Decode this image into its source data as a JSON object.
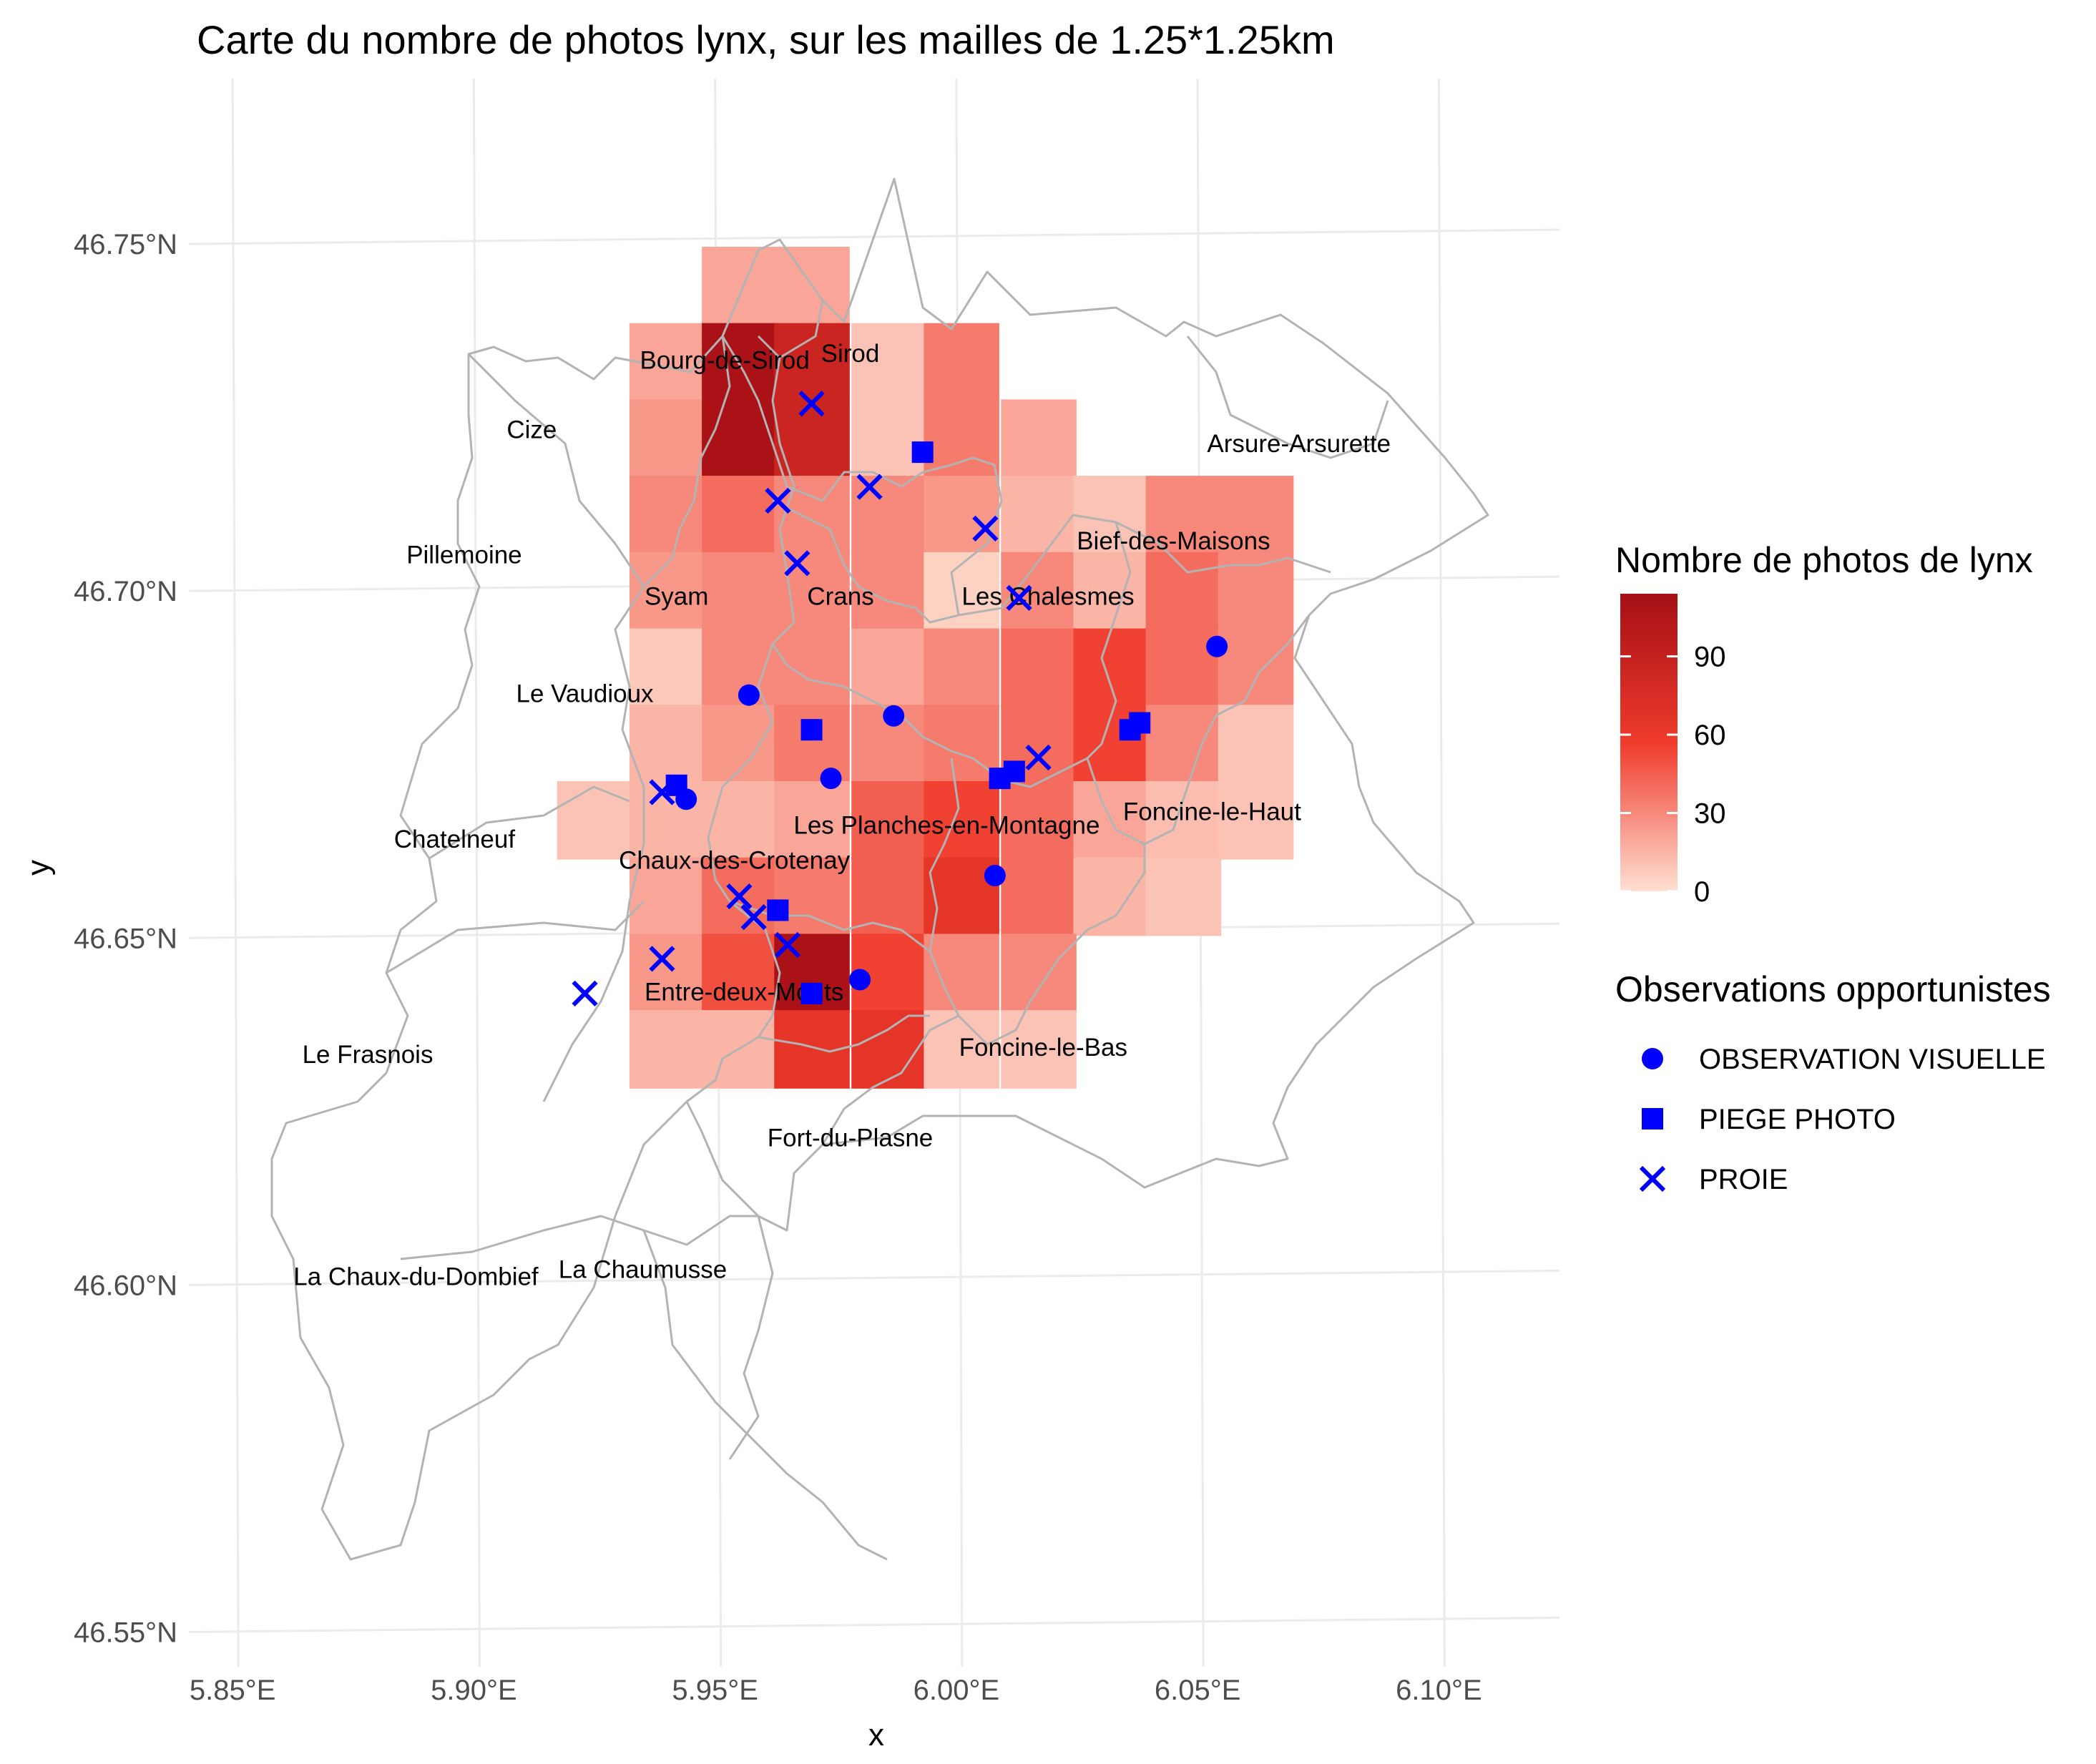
{
  "chart_data": {
    "type": "map",
    "title": "Carte du nombre de photos lynx, sur les mailles de 1.25*1.25km",
    "xlabel": "x",
    "ylabel": "y",
    "x_ticks": [
      "5.85°E",
      "5.90°E",
      "5.95°E",
      "6.00°E",
      "6.05°E",
      "6.10°E"
    ],
    "y_ticks": [
      "46.75°N",
      "46.70°N",
      "46.65°N",
      "46.60°N",
      "46.55°N"
    ],
    "xlim": [
      5.835,
      6.125
    ],
    "ylim": [
      46.545,
      46.78
    ],
    "colors": {
      "low": "#fee0d2",
      "mid": "#ef3b2c",
      "high": "#a50f15",
      "marker": "#0000ff",
      "boundary": "#b3b3b3",
      "grid": "#ebebeb"
    },
    "cells": [
      {
        "lon": 5.955,
        "lat": 46.744,
        "value": 20
      },
      {
        "lon": 5.97,
        "lat": 46.744,
        "value": 20
      },
      {
        "lon": 5.94,
        "lat": 46.733,
        "value": 20
      },
      {
        "lon": 5.955,
        "lat": 46.733,
        "value": 110
      },
      {
        "lon": 5.97,
        "lat": 46.733,
        "value": 85
      },
      {
        "lon": 5.986,
        "lat": 46.733,
        "value": 10
      },
      {
        "lon": 6.001,
        "lat": 46.733,
        "value": 35
      },
      {
        "lon": 5.94,
        "lat": 46.722,
        "value": 25
      },
      {
        "lon": 5.955,
        "lat": 46.722,
        "value": 110
      },
      {
        "lon": 5.97,
        "lat": 46.722,
        "value": 85
      },
      {
        "lon": 5.986,
        "lat": 46.722,
        "value": 10
      },
      {
        "lon": 6.001,
        "lat": 46.722,
        "value": 35
      },
      {
        "lon": 6.017,
        "lat": 46.722,
        "value": 20
      },
      {
        "lon": 5.94,
        "lat": 46.711,
        "value": 30
      },
      {
        "lon": 5.955,
        "lat": 46.711,
        "value": 40
      },
      {
        "lon": 5.97,
        "lat": 46.711,
        "value": 30
      },
      {
        "lon": 5.986,
        "lat": 46.711,
        "value": 30
      },
      {
        "lon": 6.001,
        "lat": 46.711,
        "value": 25
      },
      {
        "lon": 6.017,
        "lat": 46.711,
        "value": 15
      },
      {
        "lon": 6.032,
        "lat": 46.711,
        "value": 10
      },
      {
        "lon": 6.047,
        "lat": 46.711,
        "value": 30
      },
      {
        "lon": 6.062,
        "lat": 46.711,
        "value": 30
      },
      {
        "lon": 5.94,
        "lat": 46.7,
        "value": 25
      },
      {
        "lon": 5.955,
        "lat": 46.7,
        "value": 30
      },
      {
        "lon": 5.97,
        "lat": 46.7,
        "value": 30
      },
      {
        "lon": 5.986,
        "lat": 46.7,
        "value": 30
      },
      {
        "lon": 6.001,
        "lat": 46.7,
        "value": 5
      },
      {
        "lon": 6.017,
        "lat": 46.7,
        "value": 30
      },
      {
        "lon": 6.032,
        "lat": 46.7,
        "value": 15
      },
      {
        "lon": 6.047,
        "lat": 46.7,
        "value": 40
      },
      {
        "lon": 6.062,
        "lat": 46.7,
        "value": 30
      },
      {
        "lon": 5.94,
        "lat": 46.689,
        "value": 8
      },
      {
        "lon": 5.955,
        "lat": 46.689,
        "value": 30
      },
      {
        "lon": 5.97,
        "lat": 46.689,
        "value": 30
      },
      {
        "lon": 5.986,
        "lat": 46.689,
        "value": 20
      },
      {
        "lon": 6.001,
        "lat": 46.689,
        "value": 30
      },
      {
        "lon": 6.017,
        "lat": 46.689,
        "value": 40
      },
      {
        "lon": 6.032,
        "lat": 46.689,
        "value": 55
      },
      {
        "lon": 6.047,
        "lat": 46.689,
        "value": 40
      },
      {
        "lon": 6.062,
        "lat": 46.689,
        "value": 30
      },
      {
        "lon": 5.94,
        "lat": 46.678,
        "value": 15
      },
      {
        "lon": 5.955,
        "lat": 46.678,
        "value": 25
      },
      {
        "lon": 5.97,
        "lat": 46.678,
        "value": 35
      },
      {
        "lon": 5.986,
        "lat": 46.678,
        "value": 30
      },
      {
        "lon": 6.001,
        "lat": 46.678,
        "value": 35
      },
      {
        "lon": 6.017,
        "lat": 46.678,
        "value": 40
      },
      {
        "lon": 6.032,
        "lat": 46.678,
        "value": 55
      },
      {
        "lon": 6.047,
        "lat": 46.678,
        "value": 30
      },
      {
        "lon": 6.062,
        "lat": 46.678,
        "value": 10
      },
      {
        "lon": 5.925,
        "lat": 46.667,
        "value": 10
      },
      {
        "lon": 5.94,
        "lat": 46.667,
        "value": 15
      },
      {
        "lon": 5.955,
        "lat": 46.667,
        "value": 15
      },
      {
        "lon": 5.97,
        "lat": 46.667,
        "value": 20
      },
      {
        "lon": 5.986,
        "lat": 46.667,
        "value": 45
      },
      {
        "lon": 6.001,
        "lat": 46.667,
        "value": 55
      },
      {
        "lon": 6.017,
        "lat": 46.667,
        "value": 40
      },
      {
        "lon": 6.032,
        "lat": 46.667,
        "value": 20
      },
      {
        "lon": 6.047,
        "lat": 46.667,
        "value": 12
      },
      {
        "lon": 6.062,
        "lat": 46.667,
        "value": 10
      },
      {
        "lon": 5.94,
        "lat": 46.656,
        "value": 20
      },
      {
        "lon": 5.955,
        "lat": 46.656,
        "value": 40
      },
      {
        "lon": 5.97,
        "lat": 46.656,
        "value": 35
      },
      {
        "lon": 5.986,
        "lat": 46.656,
        "value": 45
      },
      {
        "lon": 6.001,
        "lat": 46.656,
        "value": 65
      },
      {
        "lon": 6.017,
        "lat": 46.656,
        "value": 40
      },
      {
        "lon": 6.032,
        "lat": 46.656,
        "value": 15
      },
      {
        "lon": 6.047,
        "lat": 46.656,
        "value": 10
      },
      {
        "lon": 5.94,
        "lat": 46.645,
        "value": 25
      },
      {
        "lon": 5.955,
        "lat": 46.645,
        "value": 50
      },
      {
        "lon": 5.97,
        "lat": 46.645,
        "value": 110
      },
      {
        "lon": 5.986,
        "lat": 46.645,
        "value": 55
      },
      {
        "lon": 6.001,
        "lat": 46.645,
        "value": 30
      },
      {
        "lon": 6.017,
        "lat": 46.645,
        "value": 30
      },
      {
        "lon": 5.94,
        "lat": 46.634,
        "value": 15
      },
      {
        "lon": 5.955,
        "lat": 46.634,
        "value": 15
      },
      {
        "lon": 5.97,
        "lat": 46.634,
        "value": 65
      },
      {
        "lon": 5.986,
        "lat": 46.634,
        "value": 65
      },
      {
        "lon": 6.001,
        "lat": 46.634,
        "value": 10
      },
      {
        "lon": 6.017,
        "lat": 46.634,
        "value": 10
      }
    ],
    "communes": [
      {
        "name": "Bourg-de-Sirod",
        "lon": 5.952,
        "lat": 46.732
      },
      {
        "name": "Sirod",
        "lon": 5.978,
        "lat": 46.733
      },
      {
        "name": "Cize",
        "lon": 5.912,
        "lat": 46.722
      },
      {
        "name": "Arsure-Arsurette",
        "lon": 6.071,
        "lat": 46.72
      },
      {
        "name": "Pillemoine",
        "lon": 5.898,
        "lat": 46.704
      },
      {
        "name": "Bief-des-Maisons",
        "lon": 6.045,
        "lat": 46.706
      },
      {
        "name": "Syam",
        "lon": 5.942,
        "lat": 46.698
      },
      {
        "name": "Crans",
        "lon": 5.976,
        "lat": 46.698
      },
      {
        "name": "Les Chalesmes",
        "lon": 6.019,
        "lat": 46.698
      },
      {
        "name": "Le Vaudioux",
        "lon": 5.923,
        "lat": 46.684
      },
      {
        "name": "Chatelneuf",
        "lon": 5.896,
        "lat": 46.663
      },
      {
        "name": "Les Planches-en-Montagne",
        "lon": 5.998,
        "lat": 46.665
      },
      {
        "name": "Foncine-le-Haut",
        "lon": 6.053,
        "lat": 46.667
      },
      {
        "name": "Chaux-des-Crotenay",
        "lon": 5.954,
        "lat": 46.66
      },
      {
        "name": "Entre-deux-Monts",
        "lon": 5.956,
        "lat": 46.641
      },
      {
        "name": "Foncine-le-Bas",
        "lon": 6.018,
        "lat": 46.633
      },
      {
        "name": "Le Frasnois",
        "lon": 5.878,
        "lat": 46.632
      },
      {
        "name": "Fort-du-Plasne",
        "lon": 5.978,
        "lat": 46.62
      },
      {
        "name": "La Chaux-du-Dombief",
        "lon": 5.888,
        "lat": 46.6
      },
      {
        "name": "La Chaumusse",
        "lon": 5.935,
        "lat": 46.601
      }
    ],
    "observations": [
      {
        "type": "OBSERVATION VISUELLE",
        "lon": 5.957,
        "lat": 46.685
      },
      {
        "type": "OBSERVATION VISUELLE",
        "lon": 5.987,
        "lat": 46.682
      },
      {
        "type": "OBSERVATION VISUELLE",
        "lon": 5.974,
        "lat": 46.673
      },
      {
        "type": "OBSERVATION VISUELLE",
        "lon": 5.944,
        "lat": 46.67
      },
      {
        "type": "OBSERVATION VISUELLE",
        "lon": 6.054,
        "lat": 46.692
      },
      {
        "type": "OBSERVATION VISUELLE",
        "lon": 6.008,
        "lat": 46.659
      },
      {
        "type": "OBSERVATION VISUELLE",
        "lon": 5.98,
        "lat": 46.644
      },
      {
        "type": "PIEGE PHOTO",
        "lon": 5.993,
        "lat": 46.72
      },
      {
        "type": "PIEGE PHOTO",
        "lon": 5.97,
        "lat": 46.68
      },
      {
        "type": "PIEGE PHOTO",
        "lon": 6.038,
        "lat": 46.681
      },
      {
        "type": "PIEGE PHOTO",
        "lon": 6.036,
        "lat": 46.68
      },
      {
        "type": "PIEGE PHOTO",
        "lon": 6.012,
        "lat": 46.674
      },
      {
        "type": "PIEGE PHOTO",
        "lon": 6.009,
        "lat": 46.673
      },
      {
        "type": "PIEGE PHOTO",
        "lon": 5.942,
        "lat": 46.672
      },
      {
        "type": "PIEGE PHOTO",
        "lon": 5.963,
        "lat": 46.654
      },
      {
        "type": "PIEGE PHOTO",
        "lon": 5.97,
        "lat": 46.642
      },
      {
        "type": "PROIE",
        "lon": 5.97,
        "lat": 46.727
      },
      {
        "type": "PROIE",
        "lon": 5.982,
        "lat": 46.715
      },
      {
        "type": "PROIE",
        "lon": 5.963,
        "lat": 46.713
      },
      {
        "type": "PROIE",
        "lon": 6.006,
        "lat": 46.709
      },
      {
        "type": "PROIE",
        "lon": 5.967,
        "lat": 46.704
      },
      {
        "type": "PROIE",
        "lon": 6.013,
        "lat": 46.699
      },
      {
        "type": "PROIE",
        "lon": 6.017,
        "lat": 46.676
      },
      {
        "type": "PROIE",
        "lon": 5.939,
        "lat": 46.671
      },
      {
        "type": "PROIE",
        "lon": 5.955,
        "lat": 46.656
      },
      {
        "type": "PROIE",
        "lon": 5.958,
        "lat": 46.653
      },
      {
        "type": "PROIE",
        "lon": 5.965,
        "lat": 46.649
      },
      {
        "type": "PROIE",
        "lon": 5.939,
        "lat": 46.647
      },
      {
        "type": "PROIE",
        "lon": 5.923,
        "lat": 46.642
      }
    ],
    "legend": {
      "fill_title": "Nombre de photos de lynx",
      "fill_breaks": [
        {
          "label": "90",
          "value": 90
        },
        {
          "label": "60",
          "value": 60
        },
        {
          "label": "30",
          "value": 30
        },
        {
          "label": "0",
          "value": 0
        }
      ],
      "fill_max": 114,
      "shape_title": "Observations opportunistes",
      "shape_items": [
        {
          "label": "OBSERVATION VISUELLE",
          "shape": "circle"
        },
        {
          "label": "PIEGE PHOTO",
          "shape": "square"
        },
        {
          "label": "PROIE",
          "shape": "cross"
        }
      ],
      "position": "right"
    }
  }
}
